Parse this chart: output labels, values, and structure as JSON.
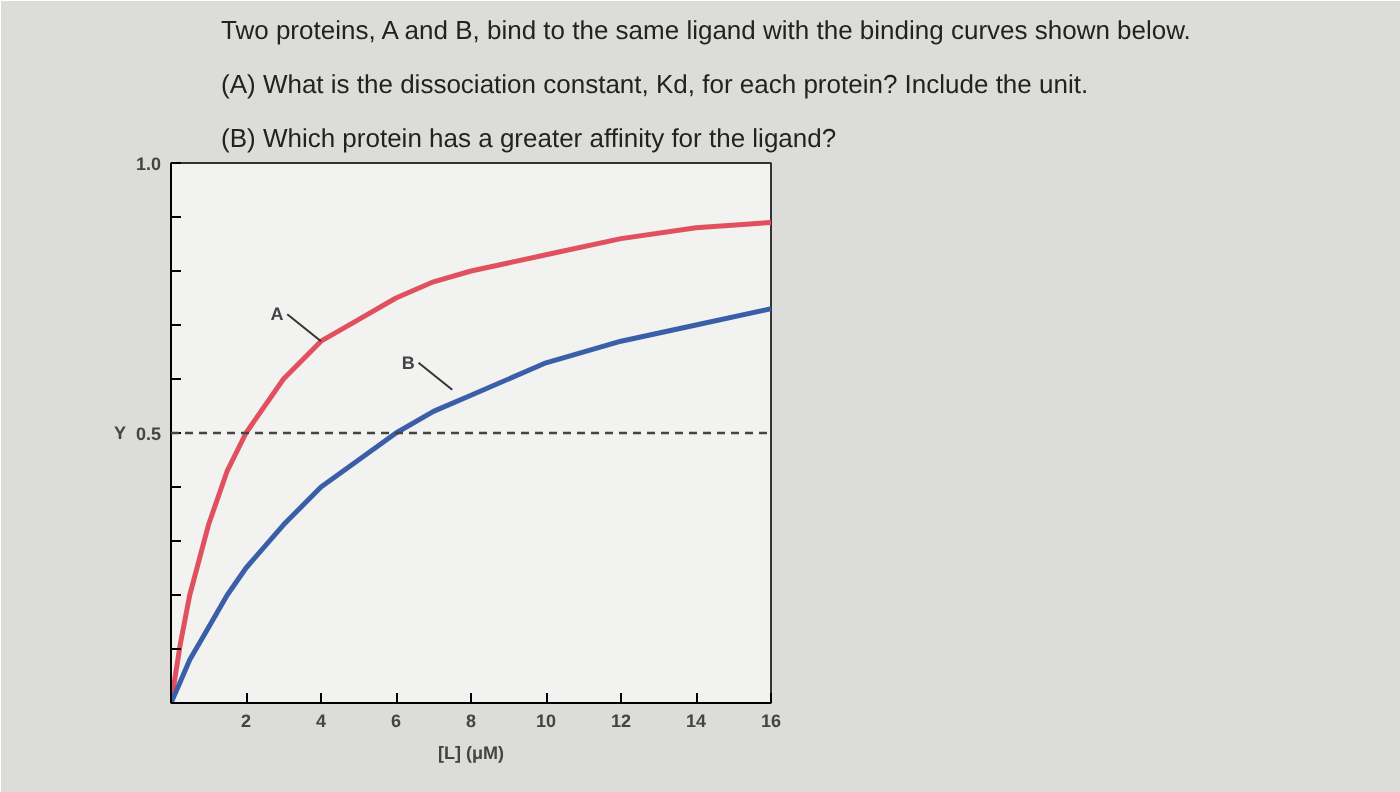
{
  "chart_data": {
    "type": "line",
    "title": "Two proteins, A and B, bind to the same ligand with the binding curves shown below.",
    "annotations": [
      "(A) What is the dissociation constant, Kd, for each protein? Include the unit.",
      "(B) Which protein has a greater affinity for the ligand?",
      {
        "text": "A",
        "x": 4,
        "y": 0.67
      },
      {
        "text": "B",
        "x": 7.5,
        "y": 0.58
      }
    ],
    "xlabel": "[L] (μM)",
    "ylabel": "Y",
    "x": [
      0,
      0.25,
      0.5,
      1,
      1.5,
      2,
      3,
      4,
      5,
      6,
      7,
      8,
      10,
      12,
      14,
      16
    ],
    "series": [
      {
        "color": "#e0505f",
        "values": [
          0,
          0.11,
          0.2,
          0.33,
          0.43,
          0.5,
          0.6,
          0.67,
          0.71,
          0.75,
          0.78,
          0.8,
          0.83,
          0.86,
          0.88,
          0.89
        ]
      },
      {
        "color": "#3a5fa8",
        "values": [
          0,
          0.04,
          0.08,
          0.14,
          0.2,
          0.25,
          0.33,
          0.4,
          0.45,
          0.5,
          0.54,
          0.57,
          0.63,
          0.67,
          0.7,
          0.73
        ]
      }
    ],
    "xlim": [
      0,
      16
    ],
    "ylim": [
      0,
      1
    ],
    "xticks": [
      {
        "value": 0,
        "label": null
      },
      2,
      4,
      6,
      8,
      10,
      12,
      14,
      16
    ],
    "yticks": [
      {
        "value": 0,
        "label": null
      },
      {
        "value": 0.1,
        "label": null
      },
      {
        "value": 0.2,
        "label": null
      },
      {
        "value": 0.3,
        "label": null
      },
      {
        "value": 0.4,
        "label": null
      },
      0.5,
      {
        "value": 0.6,
        "label": null
      },
      {
        "value": 0.7,
        "label": null
      },
      {
        "value": 0.8,
        "label": null
      },
      {
        "value": 0.9,
        "label": null
      },
      {
        "value": 1,
        "label": "1.0"
      }
    ],
    "ref_lines": [
      {
        "axis": "y",
        "value": 0.5,
        "label": null,
        "line_style": "dashed",
        "color": "#444444"
      }
    ],
    "grid": false
  }
}
